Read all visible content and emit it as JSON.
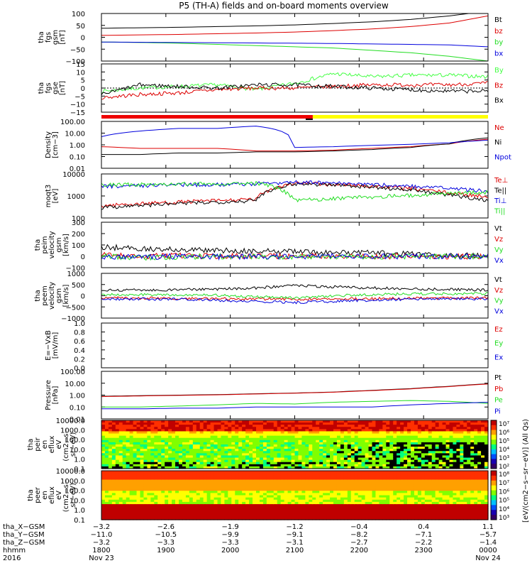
{
  "title": "P5 (TH-A) fields and on-board moments overview",
  "colors": {
    "black": "#000000",
    "red": "#dd0000",
    "green": "#22dd22",
    "blue": "#0000dd",
    "yellow": "#ffff00",
    "lime": "#44ff44"
  },
  "chart_data": [
    {
      "id": "fgs_gsm",
      "type": "line",
      "ylabel_lines": [
        "tha",
        "fgs",
        "gsm",
        "[nT]"
      ],
      "ylim": [
        -100,
        100
      ],
      "yticks": [
        "100",
        "50",
        "0",
        "−50",
        "−100"
      ],
      "series": [
        {
          "name": "Bt",
          "color": "black",
          "values": [
            38,
            40,
            42,
            45,
            48,
            52,
            58,
            65,
            75,
            90,
            110
          ]
        },
        {
          "name": "bz",
          "color": "red",
          "values": [
            8,
            10,
            12,
            15,
            18,
            22,
            28,
            35,
            45,
            60,
            90
          ]
        },
        {
          "name": "by",
          "color": "green",
          "values": [
            -20,
            -22,
            -25,
            -30,
            -35,
            -40,
            -45,
            -55,
            -65,
            -80,
            -100
          ]
        },
        {
          "name": "bx",
          "color": "blue",
          "values": [
            -20,
            -21,
            -22,
            -23,
            -24,
            -25,
            -26,
            -28,
            -30,
            -32,
            -40
          ]
        }
      ]
    },
    {
      "id": "fgs_gse",
      "type": "line",
      "ylabel_lines": [
        "tha",
        "fgs",
        "gse",
        "[nT]"
      ],
      "ylim": [
        -15,
        15
      ],
      "yticks": [
        "15",
        "10",
        "5",
        "0",
        "−5",
        "−10",
        "−15"
      ],
      "series": [
        {
          "name": "By",
          "color": "lime",
          "values": [
            -2,
            0,
            1,
            2,
            -1,
            3,
            9,
            7,
            8,
            8,
            7
          ]
        },
        {
          "name": "Bz",
          "color": "red",
          "values": [
            -6,
            -4,
            -3,
            -1,
            0,
            0,
            1,
            2,
            2,
            2,
            3
          ]
        },
        {
          "name": "Bx",
          "color": "black",
          "values": [
            -4,
            2,
            1,
            0,
            2,
            2,
            1,
            0,
            -1,
            -2,
            -2
          ]
        }
      ]
    },
    {
      "id": "density",
      "type": "line",
      "scale": "log",
      "ylabel_lines": [
        "Density",
        "[cm−3]"
      ],
      "ylim": [
        0.01,
        100
      ],
      "yticks": [
        "100.00",
        "10.00",
        "1.00",
        "0.10",
        "0.01"
      ],
      "series": [
        {
          "name": "Ne",
          "color": "red",
          "values": [
            0.7,
            0.5,
            0.5,
            0.5,
            0.3,
            0.3,
            0.35,
            0.5,
            0.7,
            1.2,
            3.0
          ]
        },
        {
          "name": "Ni",
          "color": "black",
          "values": [
            0.15,
            0.15,
            0.2,
            0.2,
            0.25,
            0.25,
            0.3,
            0.4,
            0.6,
            1.2,
            4.0
          ]
        },
        {
          "name": "Npot",
          "color": "blue",
          "values": [
            5,
            15,
            25,
            25,
            40,
            0.6,
            0.7,
            0.9,
            1.1,
            1.5,
            2.5
          ]
        }
      ]
    },
    {
      "id": "temp",
      "type": "line",
      "scale": "log",
      "ylabel_lines": [
        "moqt3",
        "[eV]"
      ],
      "ylim": [
        30,
        10000
      ],
      "yticks": [
        "10000",
        "1000",
        "100"
      ],
      "series": [
        {
          "name": "Te⊥",
          "color": "red",
          "values": [
            150,
            200,
            250,
            300,
            350,
            3000,
            2500,
            2000,
            1500,
            800,
            500
          ]
        },
        {
          "name": "Te||",
          "color": "black",
          "values": [
            120,
            160,
            200,
            250,
            300,
            2800,
            2400,
            1800,
            1200,
            600,
            300
          ]
        },
        {
          "name": "Ti⊥",
          "color": "blue",
          "values": [
            2000,
            2200,
            2500,
            2500,
            2800,
            3500,
            3000,
            2500,
            2000,
            1500,
            1000
          ]
        },
        {
          "name": "Ti||",
          "color": "green",
          "values": [
            2500,
            2500,
            2800,
            2800,
            3000,
            300,
            400,
            500,
            600,
            800,
            900
          ]
        }
      ]
    },
    {
      "id": "peim_vel",
      "type": "line",
      "ylabel_lines": [
        "tha",
        "peim",
        "velocity",
        "gsm",
        "[km/s]"
      ],
      "ylim": [
        -100,
        300
      ],
      "yticks": [
        "300",
        "200",
        "100",
        "0",
        "−100"
      ],
      "series": [
        {
          "name": "Vt",
          "color": "black",
          "values": [
            80,
            70,
            60,
            50,
            45,
            40,
            35,
            30,
            20,
            10,
            5
          ]
        },
        {
          "name": "Vz",
          "color": "red",
          "values": [
            10,
            0,
            5,
            0,
            5,
            0,
            5,
            0,
            0,
            0,
            0
          ]
        },
        {
          "name": "Vy",
          "color": "green",
          "values": [
            0,
            -10,
            -5,
            0,
            -5,
            0,
            -5,
            0,
            0,
            0,
            0
          ]
        },
        {
          "name": "Vx",
          "color": "blue",
          "values": [
            -5,
            -5,
            0,
            -5,
            0,
            0,
            0,
            0,
            0,
            0,
            0
          ]
        }
      ]
    },
    {
      "id": "peem_vel",
      "type": "line",
      "ylabel_lines": [
        "tha",
        "peem",
        "velocity",
        "gsm",
        "[km/s]"
      ],
      "ylim": [
        -1000,
        1000
      ],
      "yticks": [
        "1000",
        "500",
        "0",
        "−500",
        "−1000"
      ],
      "series": [
        {
          "name": "Vt",
          "color": "black",
          "values": [
            250,
            260,
            270,
            300,
            350,
            450,
            400,
            350,
            300,
            280,
            250
          ]
        },
        {
          "name": "Vz",
          "color": "red",
          "values": [
            -100,
            -110,
            -120,
            -130,
            -140,
            -150,
            -140,
            -130,
            -120,
            -110,
            -100
          ]
        },
        {
          "name": "Vy",
          "color": "green",
          "values": [
            50,
            40,
            30,
            20,
            -50,
            -100,
            0,
            50,
            80,
            90,
            100
          ]
        },
        {
          "name": "Vx",
          "color": "blue",
          "values": [
            -150,
            -150,
            -150,
            -200,
            -250,
            -300,
            -250,
            -200,
            -150,
            -150,
            -150
          ]
        }
      ]
    },
    {
      "id": "efield",
      "type": "line",
      "ylabel_lines": [
        "E=−VxB",
        "[mV/m]"
      ],
      "ylim": [
        0,
        1
      ],
      "yticks": [
        "1.0",
        "0.8",
        "0.6",
        "0.4",
        "0.2",
        "0.0"
      ],
      "series": [
        {
          "name": "Ez",
          "color": "red",
          "values": []
        },
        {
          "name": "Ey",
          "color": "green",
          "values": []
        },
        {
          "name": "Ex",
          "color": "blue",
          "values": []
        }
      ]
    },
    {
      "id": "pressure",
      "type": "line",
      "scale": "log",
      "ylabel_lines": [
        "Pressure",
        "[nPa]"
      ],
      "ylim": [
        0.01,
        100
      ],
      "yticks": [
        "100.00",
        "10.00",
        "1.00",
        "0.10",
        "0.01"
      ],
      "series": [
        {
          "name": "Pt",
          "color": "black",
          "values": [
            0.8,
            0.9,
            1.0,
            1.1,
            1.3,
            1.5,
            1.8,
            2.5,
            3.5,
            5.5,
            9.0
          ]
        },
        {
          "name": "Pb",
          "color": "red",
          "values": [
            0.75,
            0.85,
            0.95,
            1.05,
            1.25,
            1.45,
            1.75,
            2.4,
            3.3,
            5.2,
            8.5
          ]
        },
        {
          "name": "Pe",
          "color": "green",
          "values": [
            0.1,
            0.1,
            0.12,
            0.15,
            0.2,
            0.18,
            0.25,
            0.3,
            0.35,
            0.3,
            0.2
          ]
        },
        {
          "name": "Pi",
          "color": "blue",
          "values": [
            0.07,
            0.07,
            0.08,
            0.08,
            0.1,
            0.1,
            0.1,
            0.1,
            0.15,
            0.2,
            0.25
          ]
        }
      ]
    },
    {
      "id": "peir_en",
      "type": "heatmap",
      "ylabel_lines": [
        "tha",
        "peir",
        "en",
        "eflux",
        "eV",
        "(cm2−s−",
        "sr−eV)"
      ],
      "yticks": [
        "10000.0",
        "1000.0",
        "100.0",
        "10.0",
        "1.0",
        "0.1"
      ]
    },
    {
      "id": "peer_en",
      "type": "heatmap",
      "ylabel_lines": [
        "tha",
        "peer",
        "en",
        "eflux",
        "eV",
        "(cm2−s−",
        "sr−eV)"
      ],
      "yticks": [
        "10000.0",
        "1000.0",
        "100.0",
        "10.0",
        "1.0",
        "0.1"
      ]
    }
  ],
  "colorbar": {
    "label": "[eV/(cm2−s−sr−eV)] (All Qs)",
    "upper_ticks": [
      "10⁷",
      "10⁶",
      "10⁵",
      "10⁴",
      "10³",
      "10²"
    ],
    "lower_ticks": [
      "10⁸",
      "10⁷",
      "10⁶",
      "10⁵",
      "10⁴",
      "10³"
    ]
  },
  "mode_bar": {
    "split_label": "2100"
  },
  "x_axis": {
    "row_labels": [
      "tha_X−GSM",
      "tha_Y−GSM",
      "tha_Z−GSM",
      "hhmm",
      "2016"
    ],
    "columns": [
      {
        "x": "−3.2",
        "y": "−11.0",
        "z": "−3.2",
        "hhmm": "1800",
        "date": "Nov 23"
      },
      {
        "x": "−2.6",
        "y": "−10.5",
        "z": "−3.3",
        "hhmm": "1900",
        "date": ""
      },
      {
        "x": "−1.9",
        "y": "−9.9",
        "z": "−3.3",
        "hhmm": "2000",
        "date": ""
      },
      {
        "x": "−1.2",
        "y": "−9.1",
        "z": "−3.1",
        "hhmm": "2100",
        "date": ""
      },
      {
        "x": "−0.4",
        "y": "−8.2",
        "z": "−2.7",
        "hhmm": "2200",
        "date": ""
      },
      {
        "x": "0.4",
        "y": "−7.1",
        "z": "−2.2",
        "hhmm": "2300",
        "date": ""
      },
      {
        "x": "1.1",
        "y": "−5.7",
        "z": "−1.4",
        "hhmm": "0000",
        "date": "Nov 24"
      }
    ]
  }
}
